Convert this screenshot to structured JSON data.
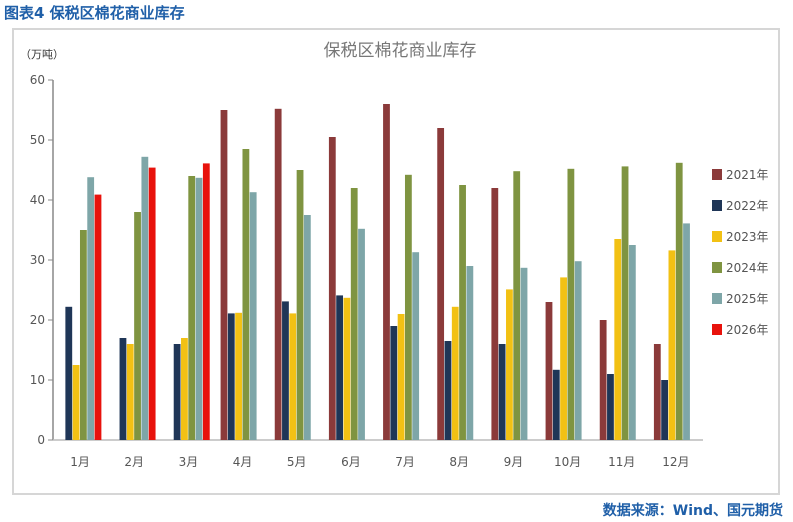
{
  "figure_title": "图表4  保税区棉花商业库存",
  "source": "数据来源：Wind、国元期货",
  "chart_data": {
    "type": "bar",
    "title": "保税区棉花商业库存",
    "ylabel": "（万吨）",
    "xlabel": "",
    "ylim": [
      0,
      60
    ],
    "yticks": [
      0,
      10,
      20,
      30,
      40,
      50,
      60
    ],
    "grid": false,
    "legend_position": "right",
    "categories": [
      "1月",
      "2月",
      "3月",
      "4月",
      "5月",
      "6月",
      "7月",
      "8月",
      "9月",
      "10月",
      "11月",
      "12月"
    ],
    "series": [
      {
        "name": "2021年",
        "color": "#8b3a3a",
        "values": [
          null,
          null,
          null,
          55.0,
          55.2,
          50.5,
          56.0,
          52.0,
          42.0,
          23.0,
          20.0,
          16.0
        ]
      },
      {
        "name": "2022年",
        "color": "#1f3657",
        "values": [
          22.2,
          17.0,
          16.0,
          21.1,
          23.1,
          24.1,
          19.0,
          16.5,
          16.0,
          11.7,
          11.0,
          10.0
        ]
      },
      {
        "name": "2023年",
        "color": "#f2c114",
        "values": [
          12.5,
          16.0,
          17.0,
          21.2,
          21.1,
          23.7,
          21.0,
          22.2,
          25.1,
          27.1,
          33.5,
          31.6
        ]
      },
      {
        "name": "2024年",
        "color": "#7f9441",
        "values": [
          35.0,
          38.0,
          44.0,
          48.5,
          45.0,
          42.0,
          44.2,
          42.5,
          44.8,
          45.2,
          45.6,
          46.2
        ]
      },
      {
        "name": "2025年",
        "color": "#7ea6a8",
        "values": [
          43.8,
          47.2,
          43.7,
          41.3,
          37.5,
          35.2,
          31.3,
          29.0,
          28.7,
          29.8,
          32.5,
          36.1
        ]
      },
      {
        "name": "2026年",
        "color": "#e8120c",
        "values": [
          40.9,
          45.4,
          46.1,
          null,
          null,
          null,
          null,
          null,
          null,
          null,
          null,
          null
        ]
      }
    ]
  }
}
